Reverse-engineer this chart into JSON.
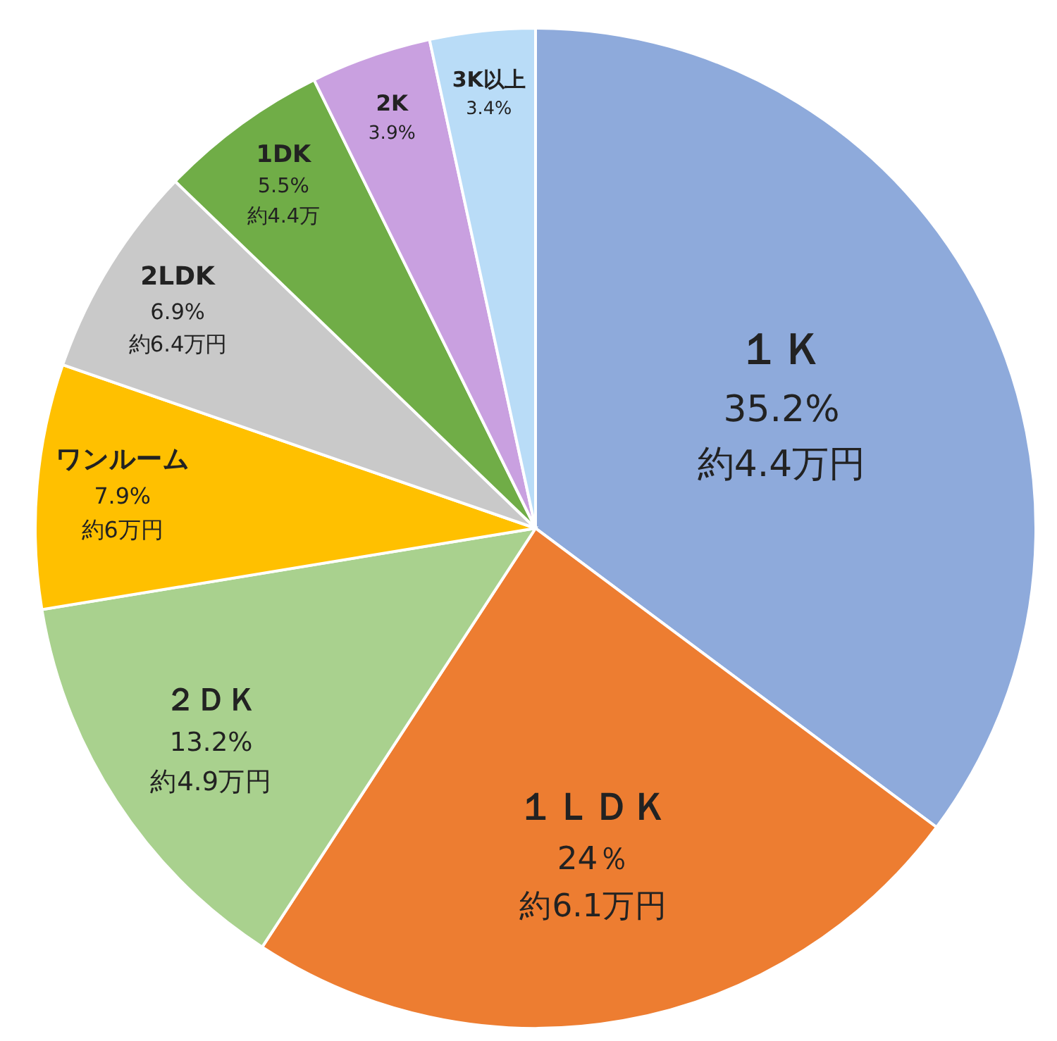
{
  "chart_data": {
    "type": "pie",
    "categories": [
      "１Ｋ",
      "１ＬＤＫ",
      "２ＤＫ",
      "ワンルーム",
      "2LDK",
      "1DK",
      "2K",
      "3K以上"
    ],
    "values": [
      35.2,
      24,
      13.2,
      7.9,
      6.9,
      5.5,
      3.9,
      3.4
    ],
    "colors": [
      "#8eaadb",
      "#ed7d31",
      "#a9d18e",
      "#ffc000",
      "#c9c9c9",
      "#70ad47",
      "#c9a0e0",
      "#b9dcf7"
    ],
    "value_labels": [
      "35.2%",
      "24％",
      "13.2%",
      "7.9%",
      "6.9%",
      "5.5%",
      "3.9%",
      "3.4%"
    ],
    "annotations": [
      {
        "text": "約4.4万円",
        "x": "１Ｋ"
      },
      {
        "text": "約6.1万円",
        "x": "１ＬＤＫ"
      },
      {
        "text": "約4.9万円",
        "x": "２ＤＫ"
      },
      {
        "text": "約6万円",
        "x": "ワンルーム"
      },
      {
        "text": "約6.4万円",
        "x": "2LDK"
      },
      {
        "text": "約4.4万",
        "x": "1DK"
      }
    ],
    "legend": false
  }
}
